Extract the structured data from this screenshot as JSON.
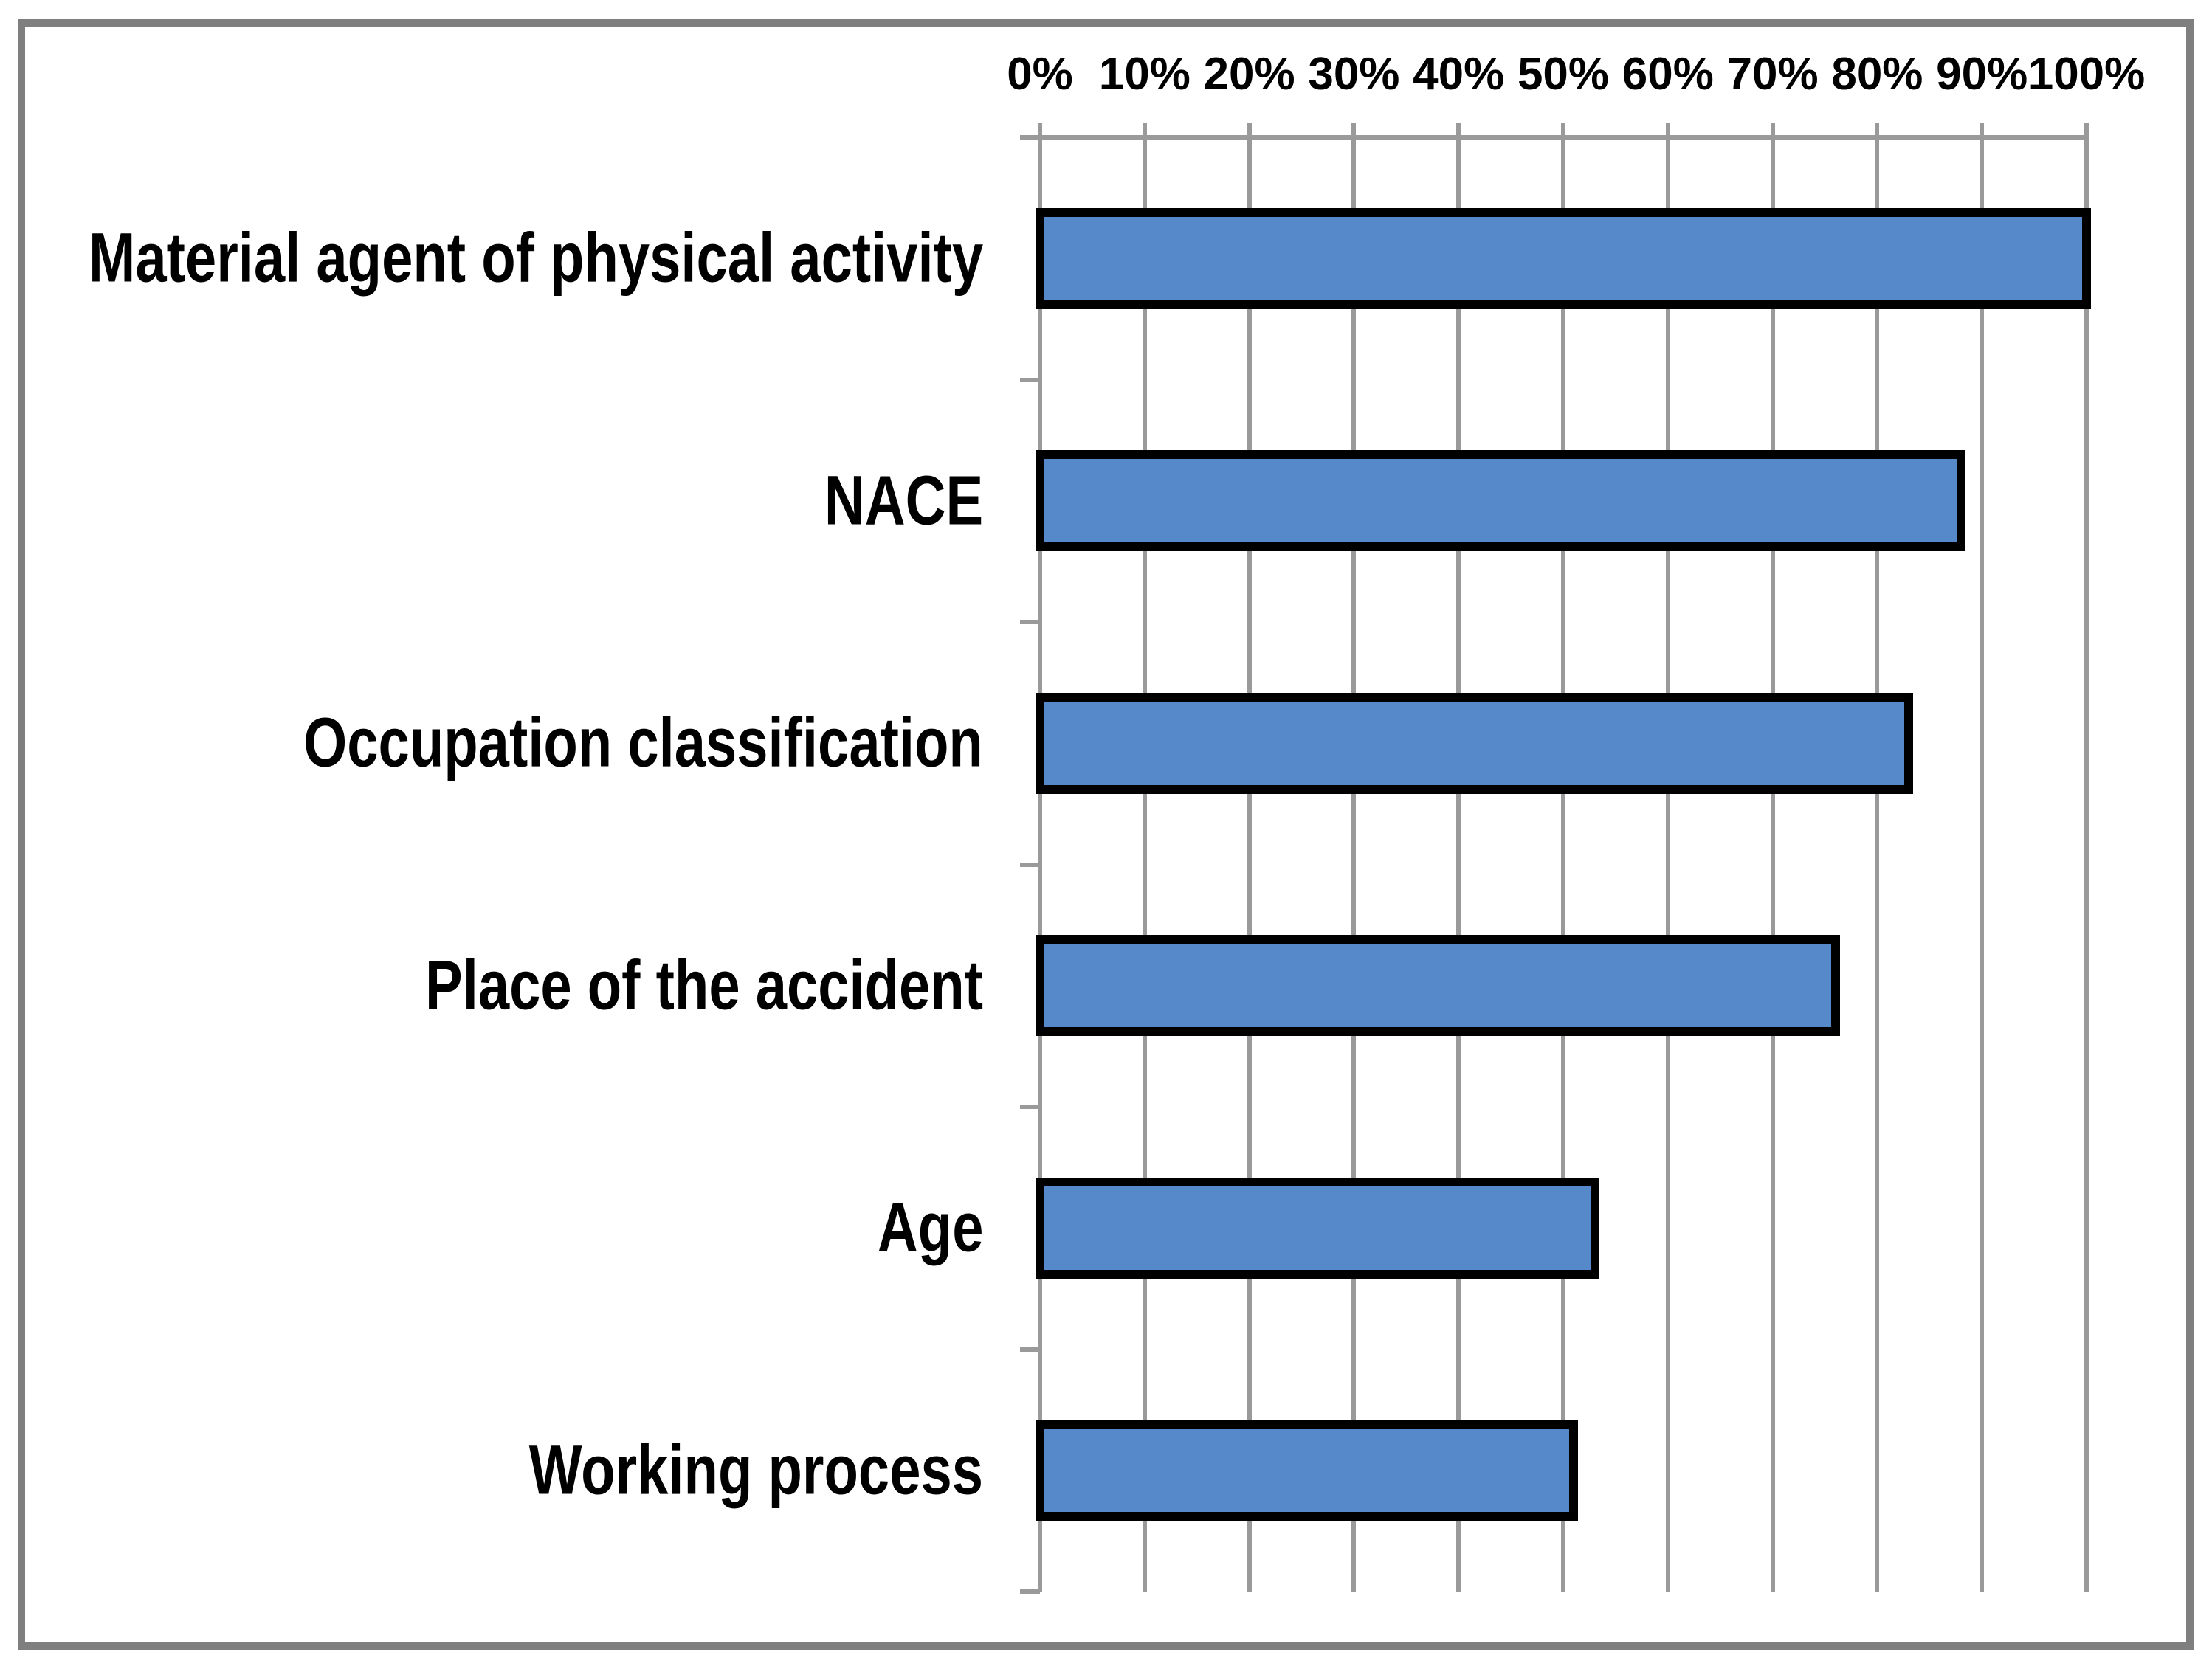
{
  "chart_data": {
    "type": "bar",
    "orientation": "horizontal",
    "title": "",
    "xlabel": "",
    "ylabel": "",
    "xlim": [
      0,
      100
    ],
    "axis_position": "top",
    "grid": true,
    "x_tick_labels": [
      "0%",
      "10%",
      "20%",
      "30%",
      "40%",
      "50%",
      "60%",
      "70%",
      "80%",
      "90%",
      "100%"
    ],
    "categories": [
      "Material agent of physical activity",
      "NACE",
      "Occupation classification",
      "Place of the accident",
      "Age",
      "Working process"
    ],
    "values": [
      100,
      88,
      83,
      76,
      53,
      51
    ],
    "colors": {
      "bar_fill": "#5589ca",
      "bar_border": "#000000",
      "gridline": "#9a9a9a",
      "axis_line": "#9a9a9a",
      "frame": "#7f7f7f",
      "text": "#000000",
      "background": "#ffffff"
    }
  }
}
